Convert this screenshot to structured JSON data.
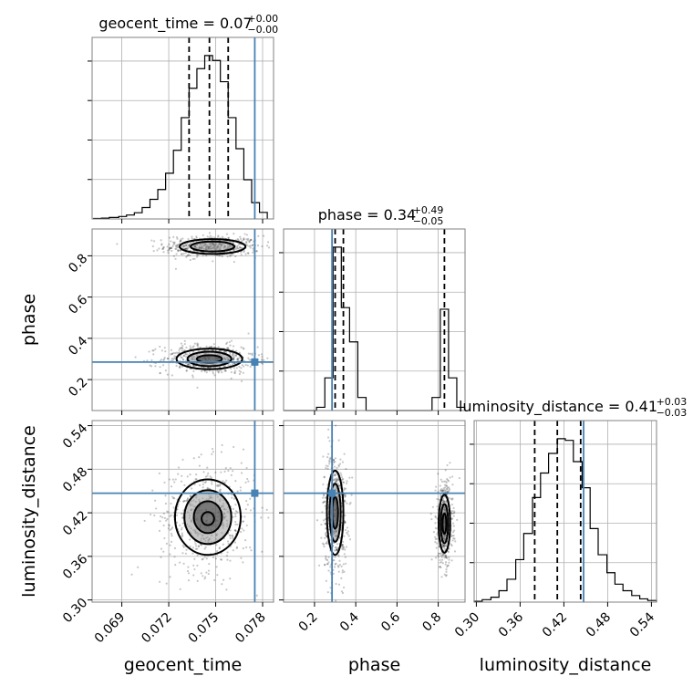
{
  "chart_data": {
    "type": "corner",
    "parameters": [
      {
        "key": "geocent_time",
        "label": "geocent_time",
        "title_main": "geocent_time = 0.07",
        "title_plus": "+0.00",
        "title_minus": "−0.00",
        "range": [
          0.0671,
          0.0787
        ],
        "ticks": [
          0.069,
          0.072,
          0.075,
          0.078
        ],
        "tick_labels": [
          "0.069",
          "0.072",
          "0.075",
          "0.078"
        ],
        "quantiles": [
          0.0733,
          0.0746,
          0.0758
        ],
        "truth": 0.0775
      },
      {
        "key": "phase",
        "label": "phase",
        "title_main": "phase = 0.34",
        "title_plus": "+0.49",
        "title_minus": "−0.05",
        "range": [
          0.05,
          0.93
        ],
        "ticks": [
          0.2,
          0.4,
          0.6,
          0.8
        ],
        "tick_labels": [
          "0.2",
          "0.4",
          "0.6",
          "0.8"
        ],
        "quantiles": [
          0.3,
          0.34,
          0.83
        ],
        "truth": 0.285
      },
      {
        "key": "luminosity_distance",
        "label": "luminosity_distance",
        "title_main": "luminosity_distance = 0.41",
        "title_plus": "+0.03",
        "title_minus": "−0.03",
        "range": [
          0.297,
          0.547
        ],
        "ticks": [
          0.3,
          0.36,
          0.42,
          0.48,
          0.54
        ],
        "tick_labels": [
          "0.30",
          "0.36",
          "0.42",
          "0.48",
          "0.54"
        ],
        "quantiles": [
          0.38,
          0.411,
          0.443
        ],
        "truth": 0.447
      }
    ],
    "histograms": {
      "geocent_time": {
        "bin_edges": [
          0.0672,
          0.0677,
          0.0682,
          0.0688,
          0.0693,
          0.0698,
          0.0703,
          0.0708,
          0.0713,
          0.0718,
          0.0723,
          0.0728,
          0.0733,
          0.0738,
          0.0743,
          0.0748,
          0.0753,
          0.0758,
          0.0763,
          0.0768,
          0.0773,
          0.0778,
          0.0783
        ],
        "counts": [
          0.3,
          0.5,
          0.9,
          1.5,
          2.4,
          3.8,
          7,
          12,
          18,
          28,
          42,
          62,
          80,
          92,
          100,
          97,
          84,
          62,
          43,
          24,
          10,
          4
        ]
      },
      "phase": {
        "bin_edges": [
          0.05,
          0.09,
          0.13,
          0.17,
          0.21,
          0.25,
          0.29,
          0.33,
          0.37,
          0.41,
          0.45,
          0.49,
          0.53,
          0.57,
          0.61,
          0.65,
          0.69,
          0.73,
          0.77,
          0.81,
          0.85,
          0.89,
          0.93
        ],
        "counts": [
          0,
          0,
          0,
          0,
          2,
          20,
          100,
          63,
          42,
          8,
          0,
          0,
          0,
          0,
          0,
          0,
          0,
          0,
          8,
          62,
          20,
          2
        ]
      },
      "luminosity_distance": {
        "bin_edges": [
          0.297,
          0.308,
          0.32,
          0.331,
          0.342,
          0.354,
          0.365,
          0.377,
          0.388,
          0.399,
          0.411,
          0.422,
          0.433,
          0.445,
          0.456,
          0.467,
          0.479,
          0.49,
          0.501,
          0.513,
          0.524,
          0.535,
          0.547
        ],
        "counts": [
          0.5,
          1.5,
          3,
          7,
          14,
          26,
          42,
          64,
          79,
          91,
          100,
          99,
          86,
          70,
          45,
          29,
          18,
          11,
          7,
          4,
          2,
          1
        ]
      }
    },
    "contours": {
      "phase_vs_geocent_time": [
        {
          "level": "outer",
          "modes": [
            [
              0.0748,
              0.845,
              0.0021,
              0.036
            ],
            [
              0.0746,
              0.3,
              0.0021,
              0.05
            ]
          ]
        },
        {
          "level": "middle",
          "modes": [
            [
              0.0748,
              0.845,
              0.0014,
              0.024
            ],
            [
              0.0746,
              0.3,
              0.0014,
              0.035
            ]
          ]
        },
        {
          "level": "inner",
          "modes": [
            [
              0.0746,
              0.3,
              0.0008,
              0.018
            ]
          ]
        }
      ],
      "luminosity_distance_vs_geocent_time": [
        {
          "level": "outer",
          "modes": [
            [
              0.0745,
              0.414,
              0.0021,
              0.052
            ]
          ]
        },
        {
          "level": "middle",
          "modes": [
            [
              0.0745,
              0.414,
              0.0015,
              0.037
            ]
          ]
        },
        {
          "level": "inner",
          "modes": [
            [
              0.0745,
              0.414,
              0.0009,
              0.022
            ]
          ]
        },
        {
          "level": "core",
          "modes": [
            [
              0.0745,
              0.412,
              0.0004,
              0.009
            ]
          ]
        }
      ],
      "luminosity_distance_vs_phase": [
        {
          "level": "outer",
          "modes": [
            [
              0.3,
              0.42,
              0.04,
              0.058
            ],
            [
              0.83,
              0.405,
              0.028,
              0.04
            ]
          ]
        },
        {
          "level": "middle",
          "modes": [
            [
              0.3,
              0.42,
              0.027,
              0.04
            ],
            [
              0.83,
              0.405,
              0.018,
              0.027
            ]
          ]
        },
        {
          "level": "inner",
          "modes": [
            [
              0.3,
              0.42,
              0.014,
              0.022
            ],
            [
              0.83,
              0.405,
              0.009,
              0.014
            ]
          ]
        }
      ]
    },
    "grid": true,
    "colors": {
      "truth": "#4682b4",
      "contour": "#000000",
      "hist": "#000000",
      "grid": "#b0b0b0",
      "spine": "#808080",
      "scatter": "#000000"
    }
  }
}
